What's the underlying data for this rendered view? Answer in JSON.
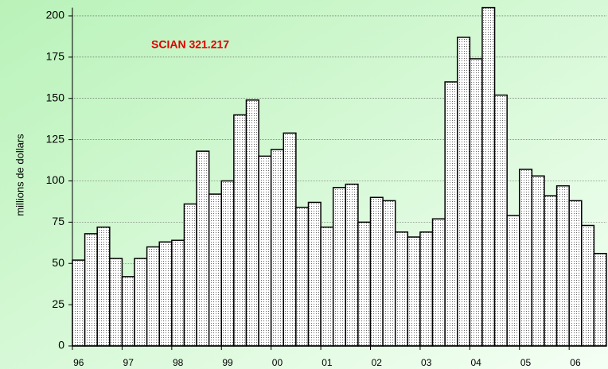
{
  "chart_data": {
    "type": "bar",
    "y_label": "millions de dollars",
    "annotation": "SCIAN 321.217",
    "categories": [
      "96",
      null,
      null,
      null,
      "97",
      null,
      null,
      null,
      "98",
      null,
      null,
      null,
      "99",
      null,
      null,
      null,
      "00",
      null,
      null,
      null,
      "01",
      null,
      null,
      null,
      "02",
      null,
      null,
      null,
      "03",
      null,
      null,
      null,
      "04",
      null,
      null,
      null,
      "05",
      null,
      null,
      null,
      "06",
      null,
      null
    ],
    "values": [
      52,
      68,
      72,
      53,
      42,
      53,
      60,
      63,
      64,
      86,
      118,
      92,
      100,
      140,
      149,
      115,
      119,
      129,
      84,
      87,
      72,
      96,
      98,
      75,
      90,
      88,
      69,
      66,
      69,
      77,
      160,
      187,
      174,
      205,
      152,
      79,
      107,
      103,
      91,
      97,
      88,
      73,
      56
    ],
    "ylim": [
      0,
      205
    ],
    "yticks": [
      0,
      25,
      50,
      75,
      100,
      125,
      150,
      175,
      200
    ],
    "grid": true
  }
}
